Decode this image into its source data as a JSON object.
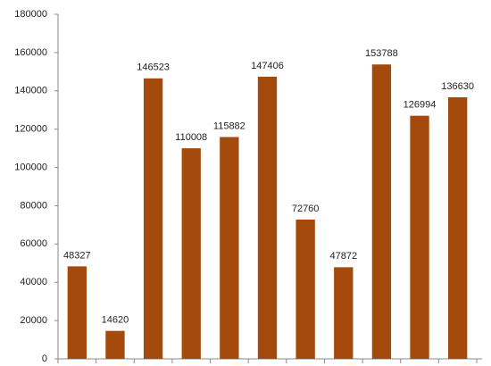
{
  "chart_data": {
    "type": "bar",
    "categories": [
      null,
      null,
      null,
      null,
      null,
      null,
      null,
      null,
      null,
      null,
      null
    ],
    "values": [
      48327,
      14620,
      146523,
      110008,
      115882,
      147406,
      72760,
      47872,
      153788,
      126994,
      136630
    ],
    "color": "#a34a0c",
    "ylim": [
      0,
      180000
    ],
    "yticks": [
      0,
      20000,
      40000,
      60000,
      80000,
      100000,
      120000,
      140000,
      160000,
      180000
    ],
    "grid": false
  }
}
